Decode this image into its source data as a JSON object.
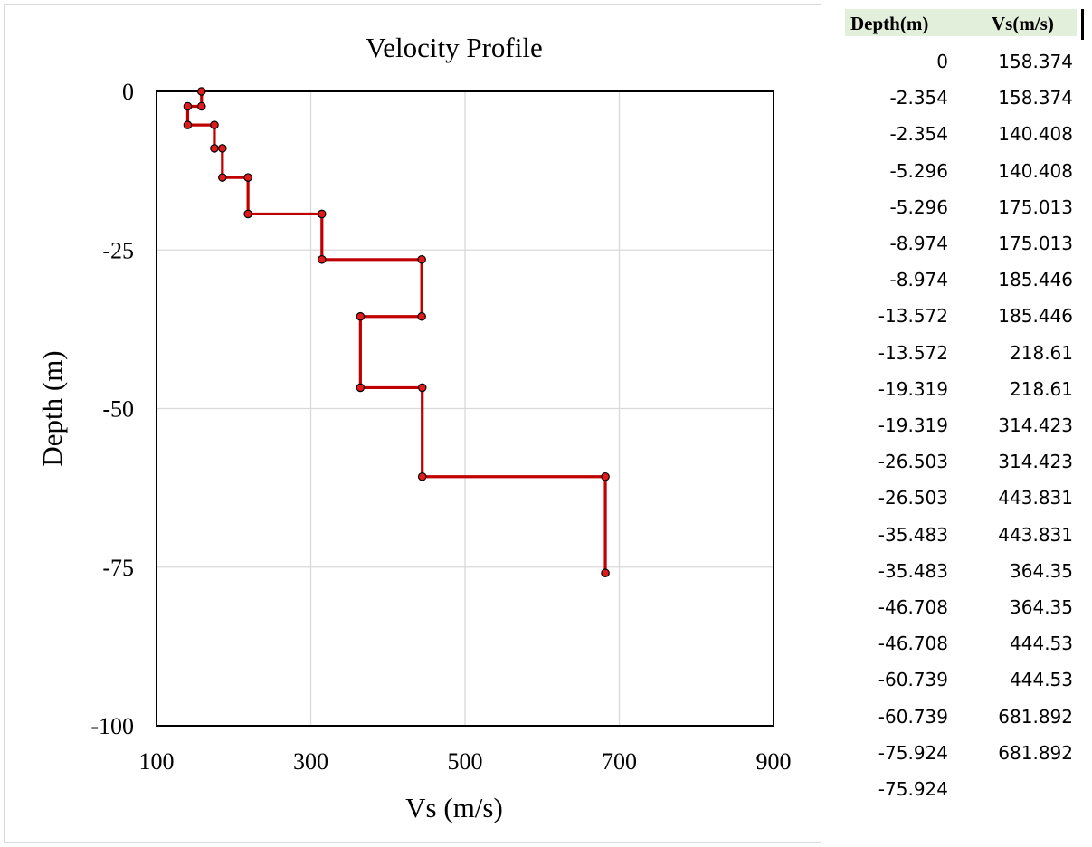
{
  "chart_data": {
    "type": "line",
    "title": "Velocity Profile",
    "xlabel": "Vs (m/s)",
    "ylabel": "Depth (m)",
    "xlim": [
      100,
      900
    ],
    "ylim": [
      -100,
      0
    ],
    "x_ticks": [
      100,
      300,
      500,
      700,
      900
    ],
    "y_ticks": [
      0,
      -25,
      -50,
      -75,
      -100
    ],
    "grid": true,
    "series": [
      {
        "color": "#c00000",
        "marker_color": "#e31a1c",
        "x": [
          158.374,
          158.374,
          140.408,
          140.408,
          175.013,
          175.013,
          185.446,
          185.446,
          218.61,
          218.61,
          314.423,
          314.423,
          443.831,
          443.831,
          364.35,
          364.35,
          444.53,
          444.53,
          681.892,
          681.892
        ],
        "y": [
          0,
          -2.354,
          -2.354,
          -5.296,
          -5.296,
          -8.974,
          -8.974,
          -13.572,
          -13.572,
          -19.319,
          -19.319,
          -26.503,
          -26.503,
          -35.483,
          -35.483,
          -46.708,
          -46.708,
          -60.739,
          -60.739,
          -75.924
        ]
      }
    ]
  },
  "table": {
    "header_bg": "#e2efda",
    "headers": [
      "Depth(m)",
      "Vs(m/s)"
    ],
    "rows": [
      [
        "0",
        "158.374"
      ],
      [
        "-2.354",
        "158.374"
      ],
      [
        "-2.354",
        "140.408"
      ],
      [
        "-5.296",
        "140.408"
      ],
      [
        "-5.296",
        "175.013"
      ],
      [
        "-8.974",
        "175.013"
      ],
      [
        "-8.974",
        "185.446"
      ],
      [
        "-13.572",
        "185.446"
      ],
      [
        "-13.572",
        "218.61"
      ],
      [
        "-19.319",
        "218.61"
      ],
      [
        "-19.319",
        "314.423"
      ],
      [
        "-26.503",
        "314.423"
      ],
      [
        "-26.503",
        "443.831"
      ],
      [
        "-35.483",
        "443.831"
      ],
      [
        "-35.483",
        "364.35"
      ],
      [
        "-46.708",
        "364.35"
      ],
      [
        "-46.708",
        "444.53"
      ],
      [
        "-60.739",
        "444.53"
      ],
      [
        "-60.739",
        "681.892"
      ],
      [
        "-75.924",
        "681.892"
      ],
      [
        "-75.924",
        ""
      ]
    ]
  }
}
